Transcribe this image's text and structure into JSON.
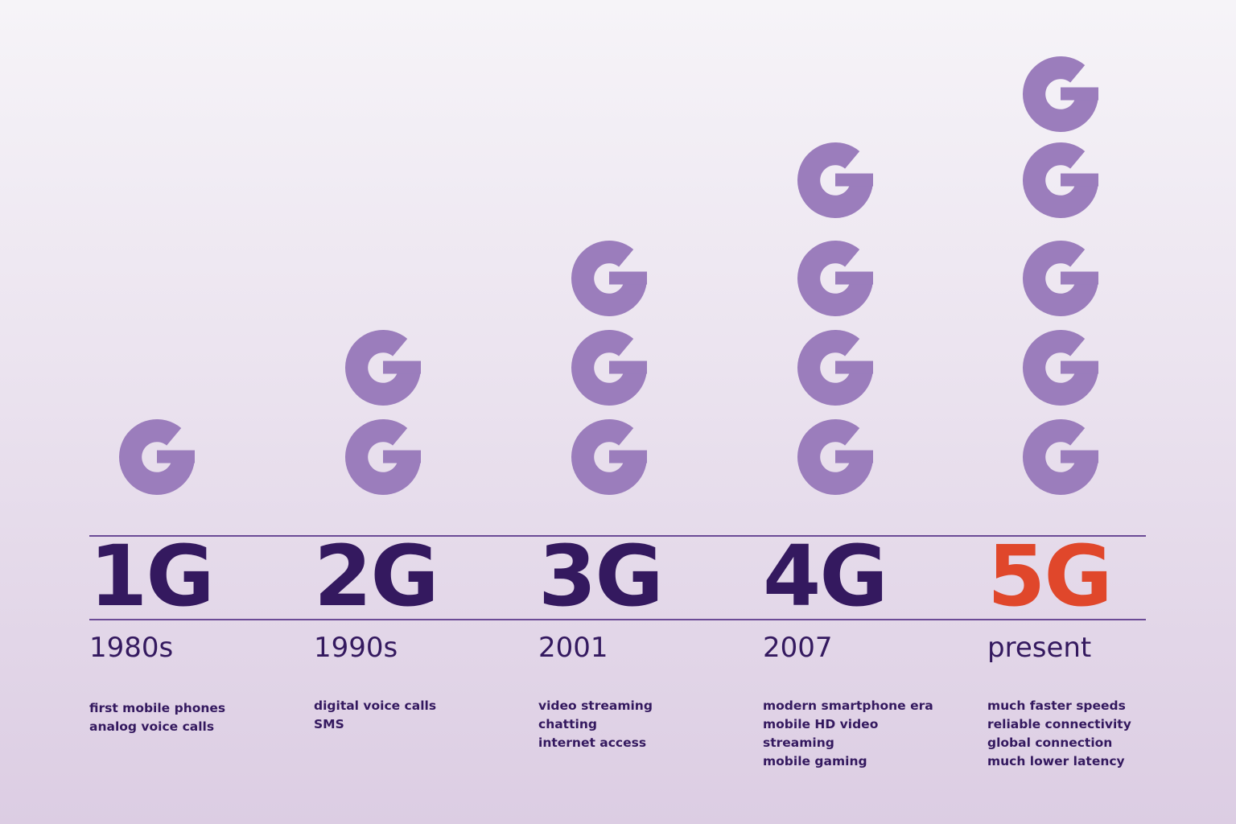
{
  "colors": {
    "primary": "#34195f",
    "accent": "#e0472b",
    "g_icon": "#9b7dbc",
    "rule": "#6b4a96"
  },
  "icon": "letter-g-icon",
  "generations": [
    {
      "label": "1G",
      "era": "1980s",
      "icon_count": 1,
      "highlight": false,
      "features": [
        "first mobile phones",
        "analog voice calls"
      ]
    },
    {
      "label": "2G",
      "era": "1990s",
      "icon_count": 2,
      "highlight": false,
      "features": [
        "digital voice calls",
        "SMS"
      ]
    },
    {
      "label": "3G",
      "era": "2001",
      "icon_count": 3,
      "highlight": false,
      "features": [
        "video streaming",
        "chatting",
        "internet access"
      ]
    },
    {
      "label": "4G",
      "era": "2007",
      "icon_count": 4,
      "highlight": false,
      "features": [
        "modern smartphone era",
        "mobile HD video",
        "streaming",
        "mobile gaming"
      ]
    },
    {
      "label": "5G",
      "era": "present",
      "icon_count": 5,
      "highlight": true,
      "features": [
        "much faster speeds",
        "reliable connectivity",
        "global connection",
        "much lower latency"
      ]
    }
  ]
}
